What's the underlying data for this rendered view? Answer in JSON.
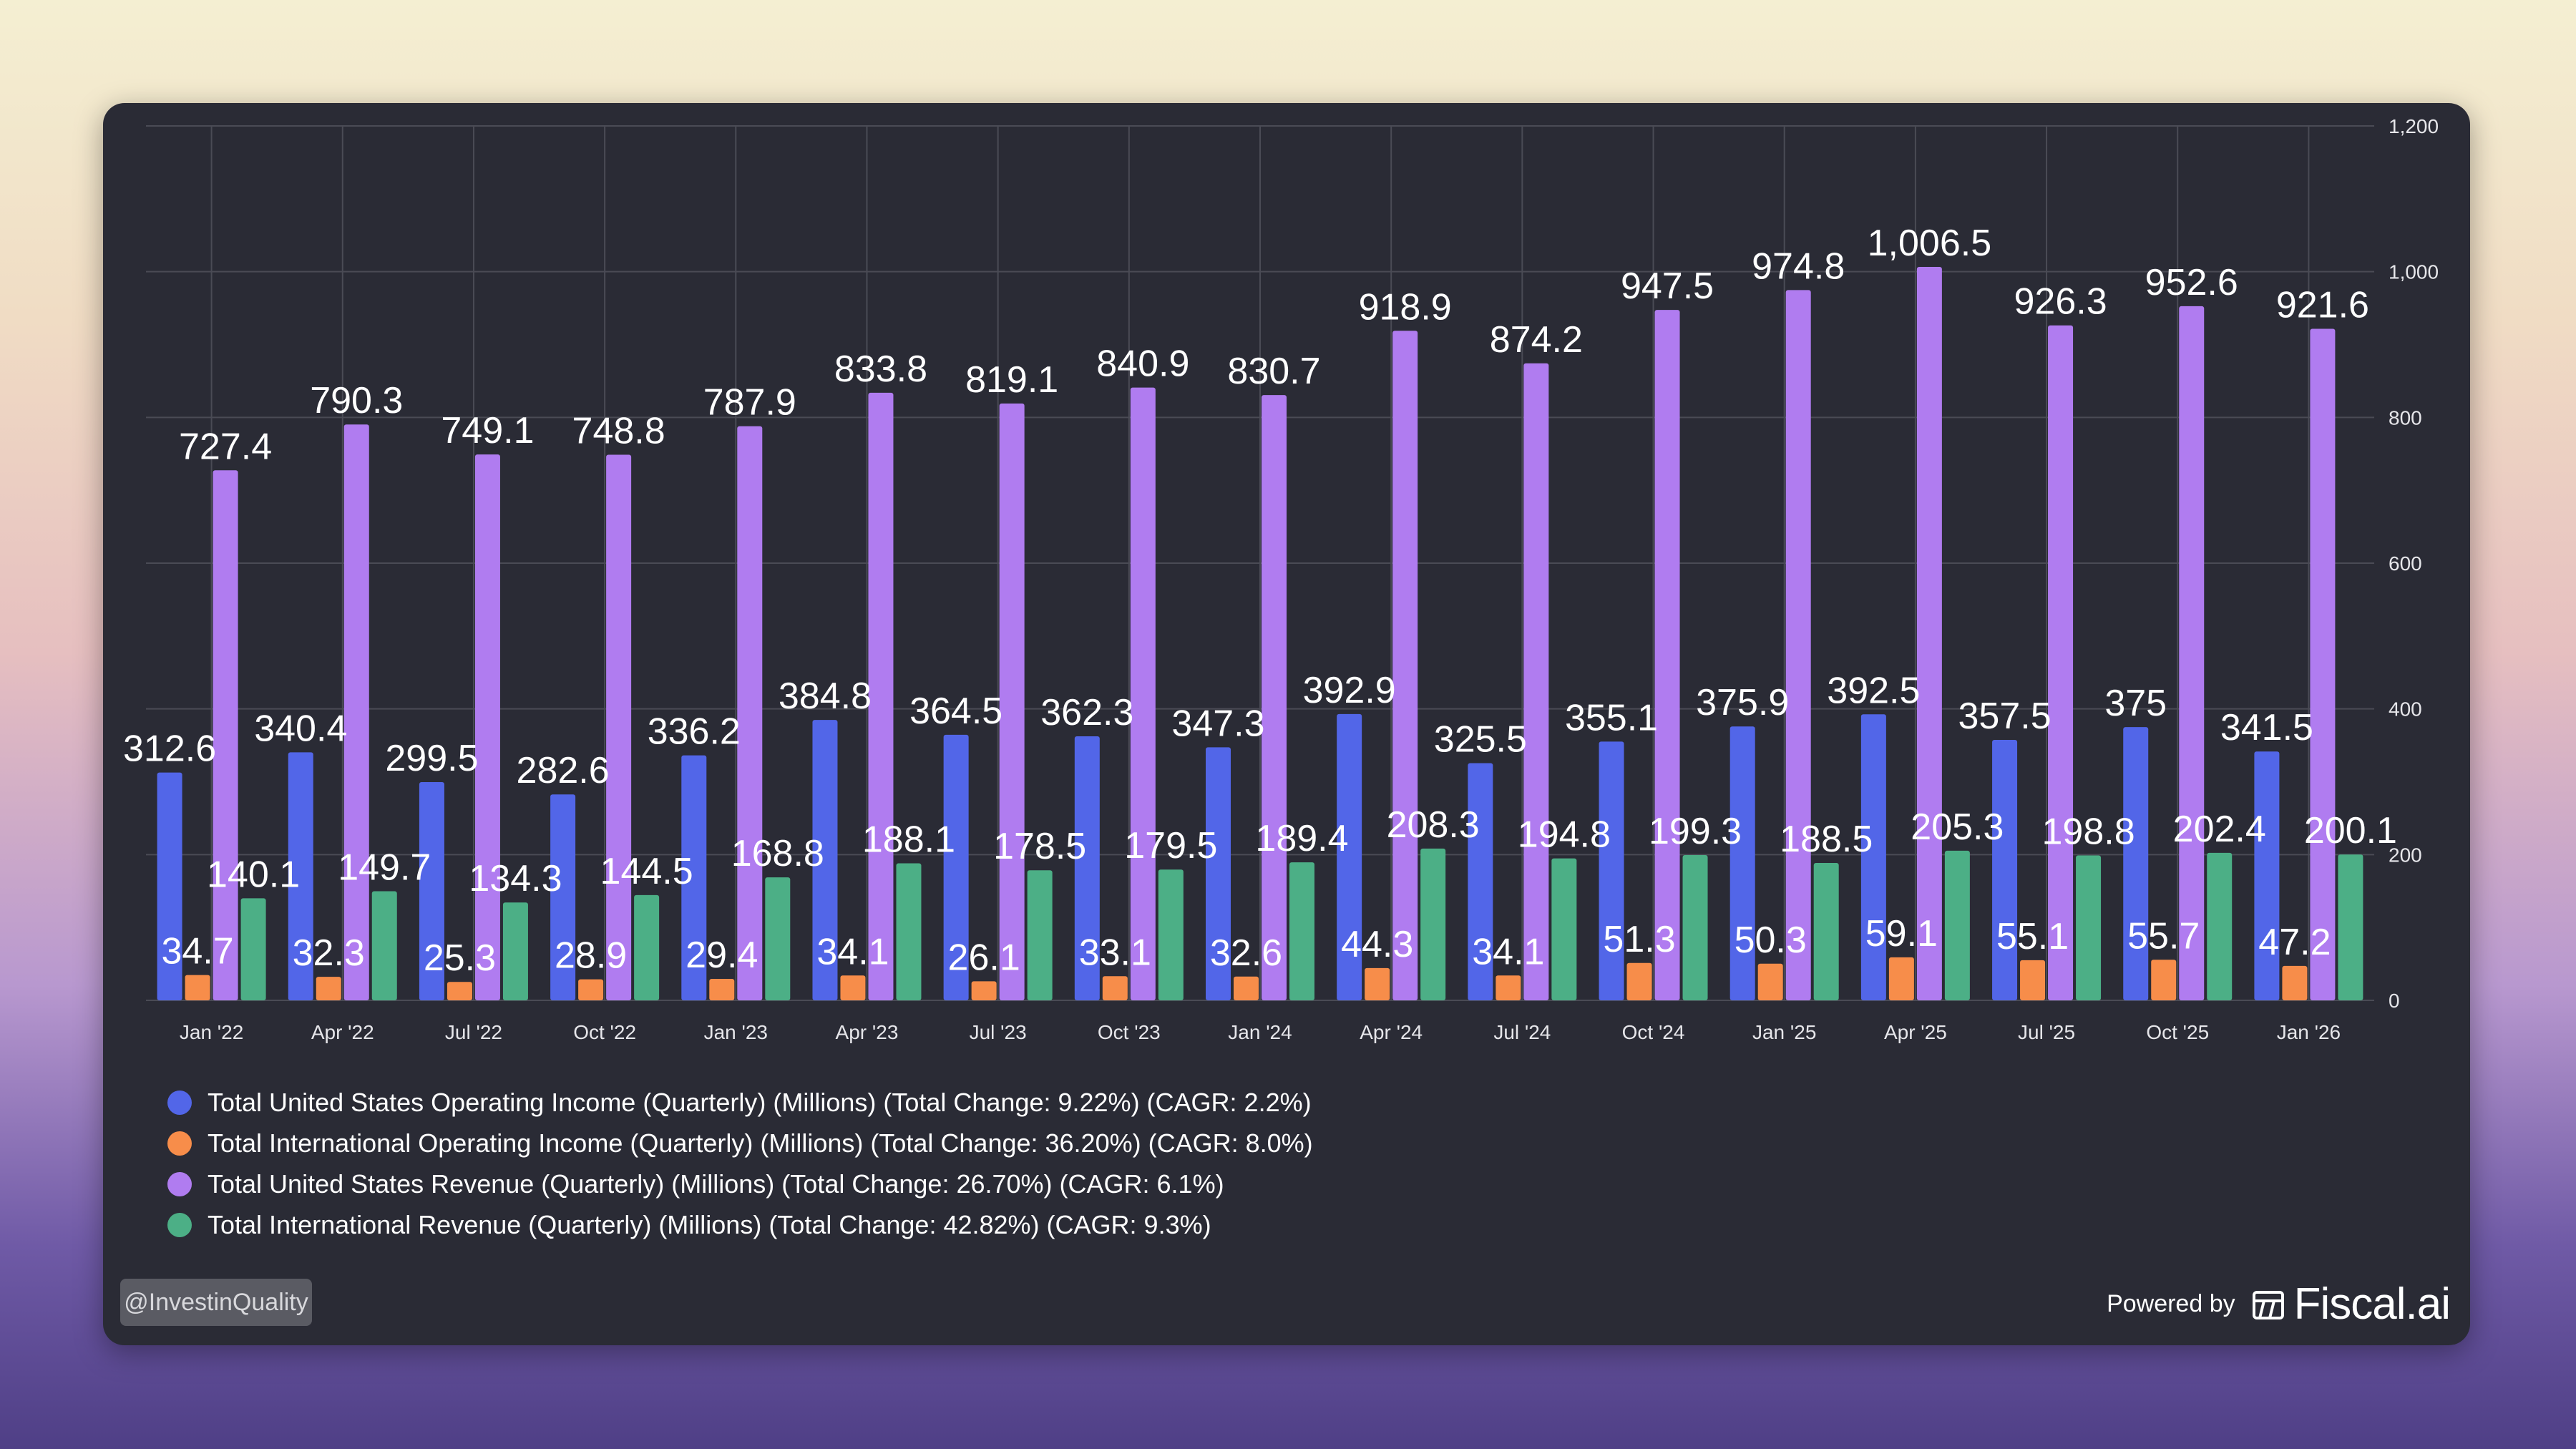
{
  "chart_data": {
    "type": "bar",
    "categories": [
      "Jan '22",
      "Apr '22",
      "Jul '22",
      "Oct '22",
      "Jan '23",
      "Apr '23",
      "Jul '23",
      "Oct '23",
      "Jan '24",
      "Apr '24",
      "Jul '24",
      "Oct '24",
      "Jan '25",
      "Apr '25",
      "Jul '25",
      "Oct '25",
      "Jan '26"
    ],
    "series": [
      {
        "name": "Total United States Operating Income (Quarterly) (Millions) (Total Change: 9.22%) (CAGR: 2.2%)",
        "color": "#5266e8",
        "values": [
          312.6,
          340.4,
          299.5,
          282.6,
          336.2,
          384.8,
          364.5,
          362.3,
          347.3,
          392.9,
          325.5,
          355.1,
          375.9,
          392.5,
          357.5,
          375,
          341.5
        ],
        "labels": [
          "312.6",
          "340.4",
          "299.5",
          "282.6",
          "336.2",
          "384.8",
          "364.5",
          "362.3",
          "347.3",
          "392.9",
          "325.5",
          "355.1",
          "375.9",
          "392.5",
          "357.5",
          "375",
          "341.5"
        ]
      },
      {
        "name": "Total International Operating Income (Quarterly) (Millions) (Total Change: 36.20%) (CAGR: 8.0%)",
        "color": "#f78d4a",
        "values": [
          34.7,
          32.3,
          25.3,
          28.9,
          29.4,
          34.1,
          26.1,
          33.1,
          32.6,
          44.3,
          34.1,
          51.3,
          50.3,
          59.1,
          55.1,
          55.7,
          47.2
        ],
        "labels": [
          "34.7",
          "32.3",
          "25.3",
          "28.9",
          "29.4",
          "34.1",
          "26.1",
          "33.1",
          "32.6",
          "44.3",
          "34.1",
          "51.3",
          "50.3",
          "59.1",
          "55.1",
          "55.7",
          "47.2"
        ]
      },
      {
        "name": "Total United States Revenue (Quarterly) (Millions) (Total Change: 26.70%) (CAGR: 6.1%)",
        "color": "#b07cf0",
        "values": [
          727.4,
          790.3,
          749.1,
          748.8,
          787.9,
          833.8,
          819.1,
          840.9,
          830.7,
          918.9,
          874.2,
          947.5,
          974.8,
          1006.5,
          926.3,
          952.6,
          921.6
        ],
        "labels": [
          "727.4",
          "790.3",
          "749.1",
          "748.8",
          "787.9",
          "833.8",
          "819.1",
          "840.9",
          "830.7",
          "918.9",
          "874.2",
          "947.5",
          "974.8",
          "1,006.5",
          "926.3",
          "952.6",
          "921.6"
        ]
      },
      {
        "name": "Total International Revenue (Quarterly) (Millions) (Total Change: 42.82%) (CAGR: 9.3%)",
        "color": "#4caf86",
        "values": [
          140.1,
          149.7,
          134.3,
          144.5,
          168.8,
          188.1,
          178.5,
          179.5,
          189.4,
          208.3,
          194.8,
          199.3,
          188.5,
          205.3,
          198.8,
          202.4,
          200.1
        ],
        "labels": [
          "140.1",
          "149.7",
          "134.3",
          "144.5",
          "168.8",
          "188.1",
          "178.5",
          "179.5",
          "189.4",
          "208.3",
          "194.8",
          "199.3",
          "188.5",
          "205.3",
          "198.8",
          "202.4",
          "200.1"
        ]
      }
    ],
    "ylim": [
      0,
      1200
    ],
    "yticks": [
      0,
      200,
      400,
      600,
      800,
      1000,
      1200
    ],
    "ytick_labels": [
      "0",
      "200",
      "400",
      "600",
      "800",
      "1,000",
      "1,200"
    ],
    "y_axis_side": "right",
    "grid": true,
    "legend_position": "bottom-left",
    "title": "",
    "xlabel": "",
    "ylabel": ""
  },
  "footer": {
    "watermark": "@InvestinQuality",
    "powered_by": "Powered by",
    "brand": "Fiscal.ai",
    "brand_icon": "fiscal-logo-icon"
  },
  "colors": {
    "card_background": "#2a2b35",
    "grid": "#4a4b55",
    "text": "#ffffff"
  }
}
